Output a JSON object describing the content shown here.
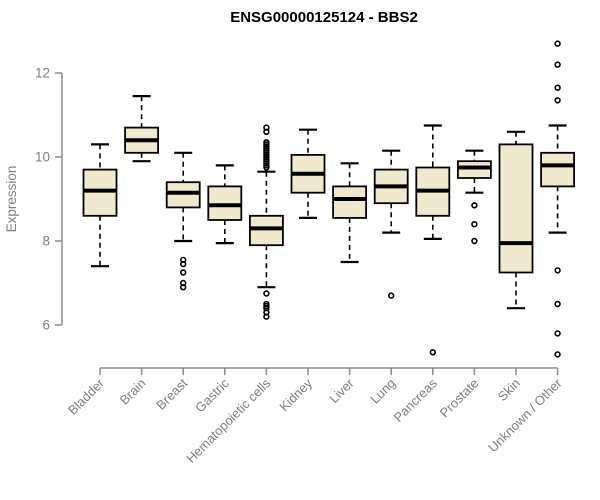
{
  "title": "ENSG00000125124 - BBS2",
  "chart_data": {
    "type": "boxplot",
    "title": "ENSG00000125124 - BBS2",
    "xlabel": "",
    "ylabel": "Expression",
    "ylim": [
      6,
      12
    ],
    "yticks": [
      "6",
      "8",
      "10",
      "12"
    ],
    "grid": false,
    "legend": false,
    "colors": {
      "box_fill": "#EFE9CD",
      "box_stroke": "#000000",
      "median": "#000000",
      "axis": "#8C8C8C",
      "tick_label": "#808080",
      "title": "#000000"
    },
    "categories": [
      "Bladder",
      "Brain",
      "Breast",
      "Gastric",
      "Hematopoietic cells",
      "Kidney",
      "Liver",
      "Lung",
      "Pancreas",
      "Prostate",
      "Skin",
      "Unknown / Other"
    ],
    "boxes": [
      {
        "label": "Bladder",
        "whisker_low": 7.4,
        "q1": 8.6,
        "median": 9.2,
        "q3": 9.7,
        "whisker_high": 10.3,
        "outliers": []
      },
      {
        "label": "Brain",
        "whisker_low": 9.9,
        "q1": 10.1,
        "median": 10.4,
        "q3": 10.7,
        "whisker_high": 11.45,
        "outliers": []
      },
      {
        "label": "Breast",
        "whisker_low": 8.0,
        "q1": 8.8,
        "median": 9.15,
        "q3": 9.4,
        "whisker_high": 10.1,
        "outliers": [
          7.55,
          7.45,
          7.25,
          7.0,
          6.9
        ]
      },
      {
        "label": "Gastric",
        "whisker_low": 7.95,
        "q1": 8.5,
        "median": 8.85,
        "q3": 9.3,
        "whisker_high": 9.8,
        "outliers": []
      },
      {
        "label": "Hematopoietic cells",
        "whisker_low": 6.9,
        "q1": 7.9,
        "median": 8.3,
        "q3": 8.6,
        "whisker_high": 9.65,
        "outliers": [
          10.7,
          10.6,
          10.35,
          10.3,
          10.25,
          10.2,
          10.15,
          10.1,
          10.05,
          10.0,
          9.95,
          9.9,
          9.85,
          9.8,
          9.75,
          6.75,
          6.5,
          6.45,
          6.4,
          6.3,
          6.2
        ]
      },
      {
        "label": "Kidney",
        "whisker_low": 8.55,
        "q1": 9.15,
        "median": 9.6,
        "q3": 10.05,
        "whisker_high": 10.65,
        "outliers": []
      },
      {
        "label": "Liver",
        "whisker_low": 7.5,
        "q1": 8.55,
        "median": 9.0,
        "q3": 9.3,
        "whisker_high": 9.85,
        "outliers": []
      },
      {
        "label": "Lung",
        "whisker_low": 8.2,
        "q1": 8.9,
        "median": 9.3,
        "q3": 9.7,
        "whisker_high": 10.15,
        "outliers": [
          6.7
        ]
      },
      {
        "label": "Pancreas",
        "whisker_low": 8.05,
        "q1": 8.6,
        "median": 9.2,
        "q3": 9.75,
        "whisker_high": 10.75,
        "outliers": [
          5.35
        ]
      },
      {
        "label": "Prostate",
        "whisker_low": 9.15,
        "q1": 9.5,
        "median": 9.75,
        "q3": 9.9,
        "whisker_high": 10.15,
        "outliers": [
          8.85,
          8.4,
          8.0
        ]
      },
      {
        "label": "Skin",
        "whisker_low": 6.4,
        "q1": 7.25,
        "median": 7.95,
        "q3": 10.3,
        "whisker_high": 10.6,
        "outliers": []
      },
      {
        "label": "Unknown / Other",
        "whisker_low": 8.2,
        "q1": 9.3,
        "median": 9.8,
        "q3": 10.1,
        "whisker_high": 10.75,
        "outliers": [
          12.7,
          12.2,
          11.65,
          11.35,
          7.3,
          6.5,
          5.8,
          5.3
        ]
      }
    ]
  }
}
